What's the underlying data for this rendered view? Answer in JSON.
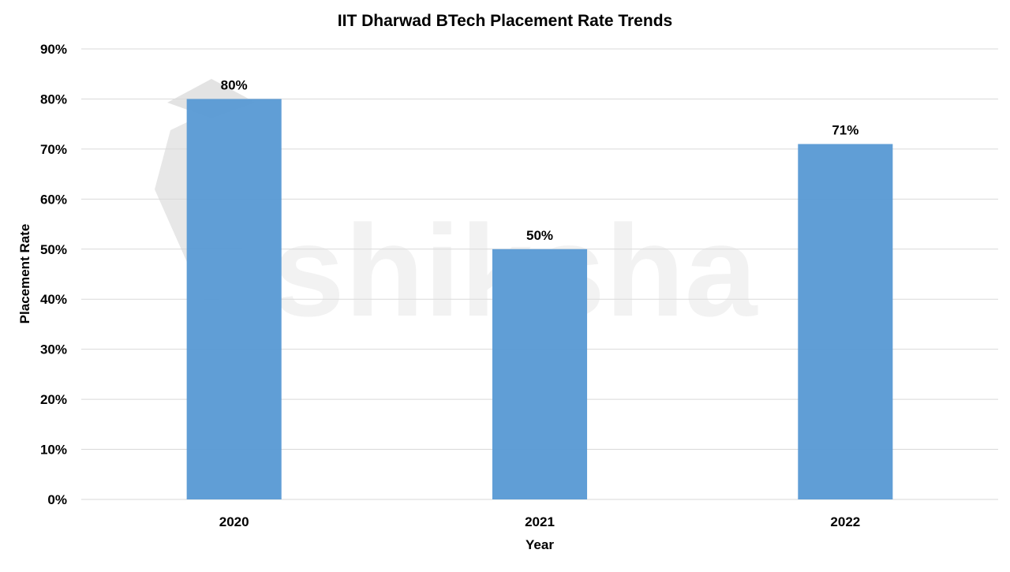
{
  "chart_data": {
    "type": "bar",
    "title": "IIT Dharwad BTech Placement Rate Trends",
    "xlabel": "Year",
    "ylabel": "Placement Rate",
    "categories": [
      "2020",
      "2021",
      "2022"
    ],
    "values": [
      80,
      50,
      71
    ],
    "data_labels": [
      "80%",
      "50%",
      "71%"
    ],
    "ylim": [
      0,
      90
    ],
    "y_ticks": [
      0,
      10,
      20,
      30,
      40,
      50,
      60,
      70,
      80,
      90
    ],
    "y_tick_labels": [
      "0%",
      "10%",
      "20%",
      "30%",
      "40%",
      "50%",
      "60%",
      "70%",
      "80%",
      "90%"
    ],
    "grid": true,
    "legend": "none",
    "bar_color": "#5b9bd5"
  },
  "watermark": {
    "text": "shiksha",
    "color": "#e6e6e6"
  }
}
